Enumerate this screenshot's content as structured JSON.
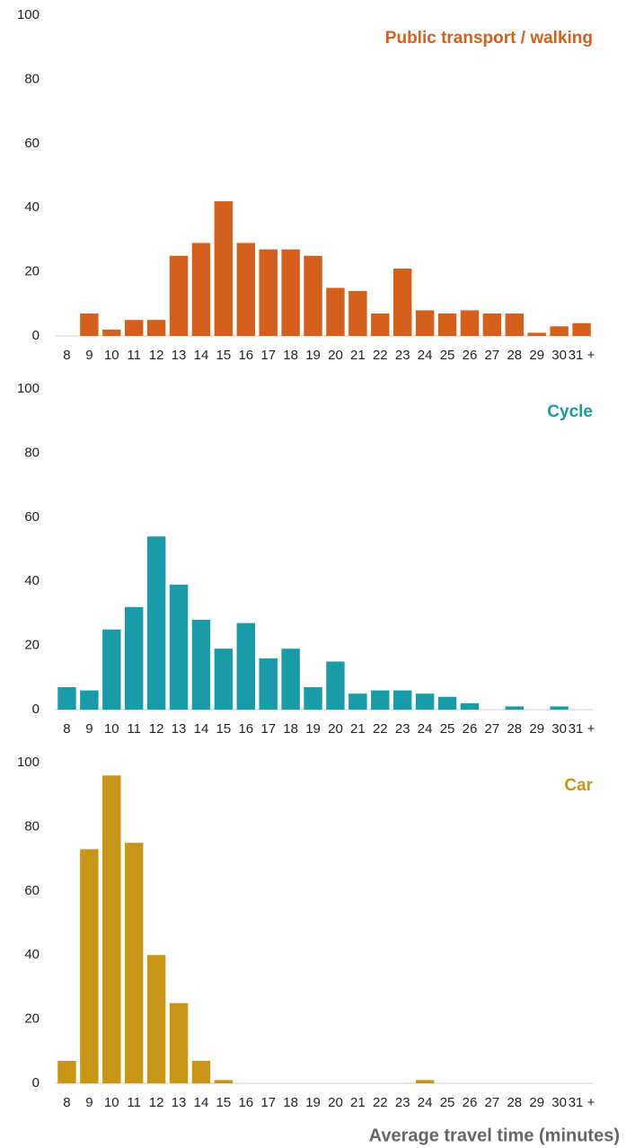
{
  "chart_data": [
    {
      "type": "bar",
      "title": "Public transport / walking",
      "color": "#d4601c",
      "categories": [
        "8",
        "9",
        "10",
        "11",
        "12",
        "13",
        "14",
        "15",
        "16",
        "17",
        "18",
        "19",
        "20",
        "21",
        "22",
        "23",
        "24",
        "25",
        "26",
        "27",
        "28",
        "29",
        "30",
        "31 +"
      ],
      "values": [
        0,
        7,
        2,
        5,
        5,
        25,
        29,
        42,
        29,
        27,
        27,
        25,
        15,
        14,
        7,
        21,
        8,
        7,
        8,
        7,
        7,
        1,
        3,
        4
      ],
      "ylim": [
        0,
        100
      ],
      "yticks": [
        0,
        20,
        40,
        60,
        80,
        100
      ],
      "grid": false
    },
    {
      "type": "bar",
      "title": "Cycle",
      "color": "#1a9ba8",
      "categories": [
        "8",
        "9",
        "10",
        "11",
        "12",
        "13",
        "14",
        "15",
        "16",
        "17",
        "18",
        "19",
        "20",
        "21",
        "22",
        "23",
        "24",
        "25",
        "26",
        "27",
        "28",
        "29",
        "30",
        "31 +"
      ],
      "values": [
        7,
        6,
        25,
        32,
        54,
        39,
        28,
        19,
        27,
        16,
        19,
        7,
        15,
        5,
        6,
        6,
        5,
        4,
        2,
        0,
        1,
        0,
        1,
        0
      ],
      "ylim": [
        0,
        100
      ],
      "yticks": [
        0,
        20,
        40,
        60,
        80,
        100
      ],
      "grid": false
    },
    {
      "type": "bar",
      "title": "Car",
      "color": "#c99516",
      "xlabel": "Average travel time (minutes)",
      "categories": [
        "8",
        "9",
        "10",
        "11",
        "12",
        "13",
        "14",
        "15",
        "16",
        "17",
        "18",
        "19",
        "20",
        "21",
        "22",
        "23",
        "24",
        "25",
        "26",
        "27",
        "28",
        "29",
        "30",
        "31 +"
      ],
      "values": [
        7,
        73,
        96,
        75,
        40,
        25,
        7,
        1,
        0,
        0,
        0,
        0,
        0,
        0,
        0,
        0,
        1,
        0,
        0,
        0,
        0,
        0,
        0,
        0
      ],
      "ylim": [
        0,
        100
      ],
      "yticks": [
        0,
        20,
        40,
        60,
        80,
        100
      ],
      "grid": false
    }
  ]
}
